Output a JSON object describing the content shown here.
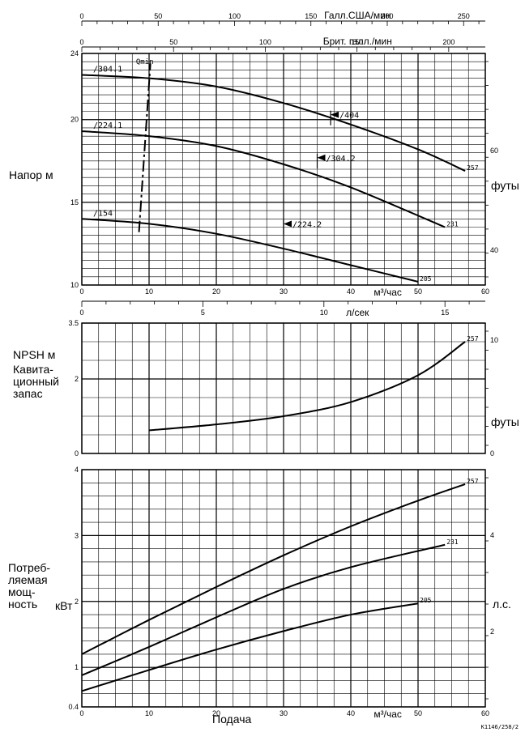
{
  "chart_data": [
    {
      "id": "head",
      "type": "line",
      "ylabel": "Напор",
      "yunit": "м",
      "yunit_right": "футы",
      "xlim": [
        0,
        60
      ],
      "ylim": [
        10,
        24
      ],
      "y_ticks": [
        10,
        15,
        20,
        24
      ],
      "right_ticks": [
        40,
        60
      ],
      "x_ticks_bottom": [
        0,
        10,
        20,
        30,
        40,
        50,
        60
      ],
      "x_unit_bottom": "м³/час",
      "top_axis_usgpm": {
        "label": "Галл.США/мин",
        "ticks": [
          0,
          50,
          100,
          150,
          200,
          250
        ]
      },
      "top_axis_ukgpm": {
        "label": "Брит. галл./мин",
        "ticks": [
          0,
          50,
          100,
          150,
          200
        ]
      },
      "series": [
        {
          "name": "/304.1",
          "x": [
            0,
            10,
            20,
            30,
            40,
            50,
            57
          ],
          "y": [
            22.7,
            22.5,
            22.0,
            21.0,
            19.7,
            18.2,
            16.9
          ]
        },
        {
          "name": "257",
          "x": [
            0,
            10,
            20,
            30,
            40,
            50,
            57
          ],
          "y": [
            22.7,
            22.5,
            22.0,
            21.0,
            19.7,
            18.2,
            16.9
          ]
        },
        {
          "name": "/224.1",
          "x": [
            0,
            10,
            20,
            30,
            40,
            54
          ],
          "y": [
            19.3,
            19.0,
            18.4,
            17.3,
            15.9,
            13.5
          ]
        },
        {
          "name": "231",
          "x": [
            0,
            10,
            20,
            30,
            40,
            54
          ],
          "y": [
            19.3,
            19.0,
            18.4,
            17.3,
            15.9,
            13.5
          ]
        },
        {
          "name": "/154",
          "x": [
            0,
            10,
            20,
            30,
            40,
            50
          ],
          "y": [
            14.0,
            13.7,
            13.1,
            12.2,
            11.2,
            10.2
          ]
        },
        {
          "name": "205",
          "x": [
            0,
            10,
            20,
            30,
            40,
            50
          ],
          "y": [
            14.0,
            13.7,
            13.1,
            12.2,
            11.2,
            10.2
          ]
        }
      ],
      "annotations": [
        {
          "text": "/404",
          "x": 37,
          "y": 20.1
        },
        {
          "text": "/304.2",
          "x": 35,
          "y": 17.5
        },
        {
          "text": "/224.2",
          "x": 30,
          "y": 13.5
        },
        {
          "text": "Qmin",
          "x": 9.5,
          "y": 23.5
        }
      ],
      "qmin_line": {
        "x": [
          8.5,
          10.2
        ],
        "y": [
          13.2,
          23.4
        ]
      }
    },
    {
      "id": "npsh",
      "type": "line",
      "ylabel": "NPSH",
      "yunit": "м",
      "ylabel2": "Кавита-\nционный\nзапас",
      "yunit_right": "футы",
      "xlim": [
        0,
        60
      ],
      "ylim": [
        0,
        3.5
      ],
      "y_ticks": [
        0,
        2,
        3.5
      ],
      "right_ticks": [
        0,
        10
      ],
      "top_axis_ls": {
        "label": "л/сек",
        "ticks": [
          0,
          5,
          10,
          15
        ]
      },
      "series": [
        {
          "name": "257",
          "x": [
            10,
            20,
            30,
            40,
            50,
            57
          ],
          "y": [
            0.62,
            0.78,
            1.0,
            1.38,
            2.1,
            3.0
          ]
        }
      ]
    },
    {
      "id": "power",
      "type": "line",
      "ylabel": "Потреб-\nляемая\nмощ-\nность",
      "yunit": "кВт",
      "yunit_right": "л.с.",
      "xlim": [
        0,
        60
      ],
      "ylim": [
        0.4,
        4
      ],
      "y_ticks": [
        0.4,
        1,
        2,
        3,
        4
      ],
      "right_ticks": [
        2,
        4
      ],
      "xlabel": "Подача",
      "x_unit_bottom": "м³/час",
      "x_ticks_bottom": [
        0,
        10,
        20,
        30,
        40,
        50,
        60
      ],
      "series": [
        {
          "name": "257",
          "x": [
            0,
            10,
            20,
            30,
            40,
            50,
            57
          ],
          "y": [
            1.2,
            1.72,
            2.22,
            2.7,
            3.14,
            3.53,
            3.78
          ]
        },
        {
          "name": "231",
          "x": [
            0,
            10,
            20,
            30,
            40,
            54
          ],
          "y": [
            0.88,
            1.31,
            1.76,
            2.19,
            2.52,
            2.86
          ]
        },
        {
          "name": "205",
          "x": [
            0,
            10,
            20,
            30,
            40,
            50
          ],
          "y": [
            0.64,
            0.96,
            1.27,
            1.55,
            1.8,
            1.97
          ]
        }
      ]
    }
  ],
  "footer_code": "K1146/258/2"
}
